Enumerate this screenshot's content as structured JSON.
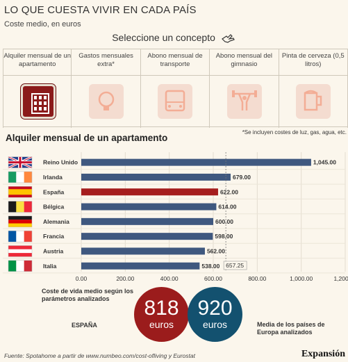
{
  "header": {
    "title": "LO QUE CUESTA VIVIR EN CADA PAÍS",
    "subtitle": "Coste medio, en euros"
  },
  "selector": {
    "title": "Seleccione un concepto",
    "concepts": [
      {
        "label": "Alquiler mensual de un apartamento",
        "icon": "apartment-building-icon",
        "active": true
      },
      {
        "label": "Gastos mensuales extra*",
        "icon": "lightbulb-icon",
        "active": false
      },
      {
        "label": "Abono mensual de transporte",
        "icon": "bus-icon",
        "active": false
      },
      {
        "label": "Abono mensual del gimnasio",
        "icon": "weightlifter-icon",
        "active": false
      },
      {
        "label": "Pinta de cerveza (0,5 litros)",
        "icon": "beer-mug-icon",
        "active": false
      }
    ],
    "footnote": "*Se incluyen costes de luz, gas, agua, etc."
  },
  "colors": {
    "bar_default": "#3f587f",
    "bar_highlight": "#a51d1d",
    "active_concept": "#8b1a1a",
    "spain_circle": "#9b1c1c",
    "europe_circle": "#13516f"
  },
  "chart_data": {
    "type": "bar",
    "orientation": "horizontal",
    "title": "Alquiler mensual de un apartamento",
    "categories": [
      "Reino Unido",
      "Irlanda",
      "España",
      "Bélgica",
      "Alemania",
      "Francia",
      "Austria",
      "Italia"
    ],
    "flags": [
      "uk-flag-icon",
      "ireland-flag-icon",
      "spain-flag-icon",
      "belgium-flag-icon",
      "germany-flag-icon",
      "france-flag-icon",
      "austria-flag-icon",
      "italy-flag-icon"
    ],
    "values": [
      1045,
      679,
      622,
      614,
      600,
      598,
      562,
      538
    ],
    "value_labels": [
      "1,045.00",
      "679.00",
      "622.00",
      "614.00",
      "600.00",
      "598.00",
      "562.00",
      "538.00"
    ],
    "highlight_category": "España",
    "xlim": [
      0,
      1200
    ],
    "xticks": [
      0,
      200,
      400,
      600,
      800,
      1000,
      1200
    ],
    "xtick_labels": [
      "0.00",
      "200.00",
      "400.00",
      "600.00",
      "800.00",
      "1,000.00",
      "1,200.00"
    ],
    "reference_line": {
      "value": 657.25,
      "label": "657.25"
    },
    "grid": true
  },
  "summary": {
    "cost_title": "Coste de vida medio según los parámetros analizados",
    "spain_label": "ESPAÑA",
    "spain_value": "818",
    "spain_unit": "euros",
    "europe_value": "920",
    "europe_unit": "euros",
    "europe_label": "Media de los países de Europa analizados"
  },
  "footer": {
    "source": "Fuente: Spotahome a partir de www.numbeo.com/cost-ofliving y Eurostat",
    "brand": "Expansión"
  }
}
